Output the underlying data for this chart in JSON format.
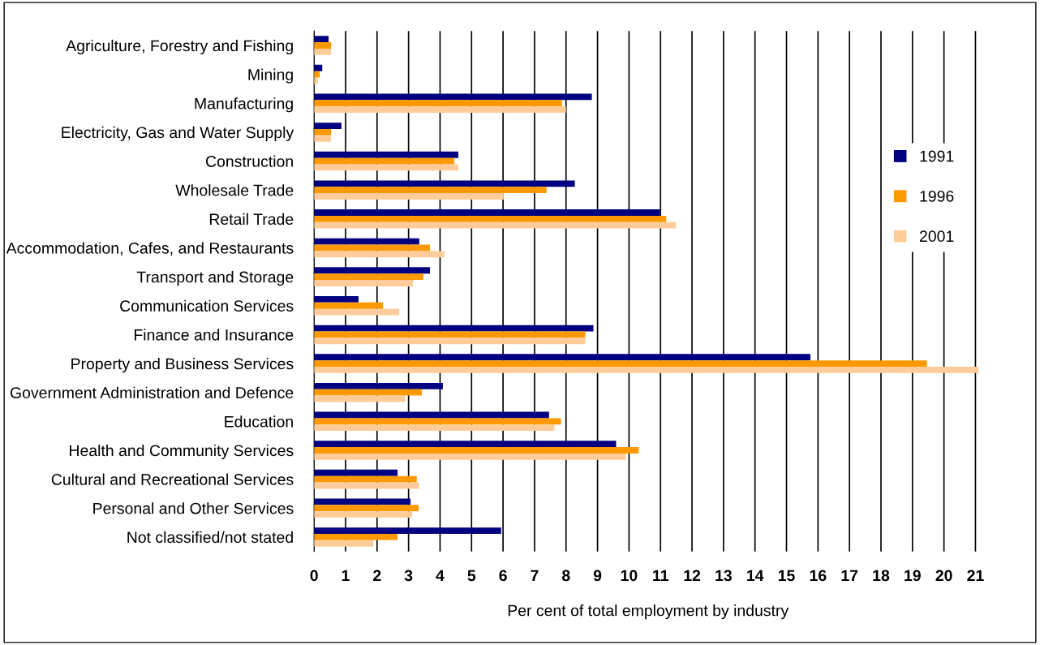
{
  "chart_data": {
    "type": "bar",
    "orientation": "horizontal",
    "xlabel": "Per cent of total employment by industry",
    "categories": [
      "Agriculture, Forestry and Fishing",
      "Mining",
      "Manufacturing",
      "Electricity, Gas and Water Supply",
      "Construction",
      "Wholesale Trade",
      "Retail Trade",
      "Accommodation, Cafes, and Restaurants",
      "Transport and Storage",
      "Communication Services",
      "Finance and Insurance",
      "Property and Business Services",
      "Government Administration and Defence",
      "Education",
      "Health and Community Services",
      "Cultural and Recreational Services",
      "Personal and Other Services",
      "Not classified/not stated"
    ],
    "series": [
      {
        "name": "1991",
        "color": "#000080",
        "values": [
          0.46,
          0.26,
          8.82,
          0.87,
          4.58,
          8.28,
          10.98,
          3.34,
          3.68,
          1.41,
          8.87,
          15.76,
          4.09,
          7.46,
          9.59,
          2.65,
          3.06,
          5.94
        ]
      },
      {
        "name": "1996",
        "color": "#ff9900",
        "values": [
          0.54,
          0.18,
          7.87,
          0.54,
          4.45,
          7.38,
          11.18,
          3.68,
          3.47,
          2.19,
          8.61,
          19.46,
          3.42,
          7.84,
          10.31,
          3.26,
          3.32,
          2.65
        ]
      },
      {
        "name": "2001",
        "color": "#ffcc99",
        "values": [
          0.54,
          0.13,
          8.0,
          0.54,
          4.58,
          6.02,
          11.49,
          4.14,
          3.14,
          2.7,
          8.61,
          21.1,
          2.9,
          7.63,
          9.9,
          3.34,
          3.11,
          1.88
        ]
      }
    ],
    "xlim": [
      0,
      21.2
    ],
    "xticks": [
      0,
      1,
      2,
      3,
      4,
      5,
      6,
      7,
      8,
      9,
      10,
      11,
      12,
      13,
      14,
      15,
      16,
      17,
      18,
      19,
      20,
      21
    ],
    "grid": "x",
    "legend": "right"
  }
}
